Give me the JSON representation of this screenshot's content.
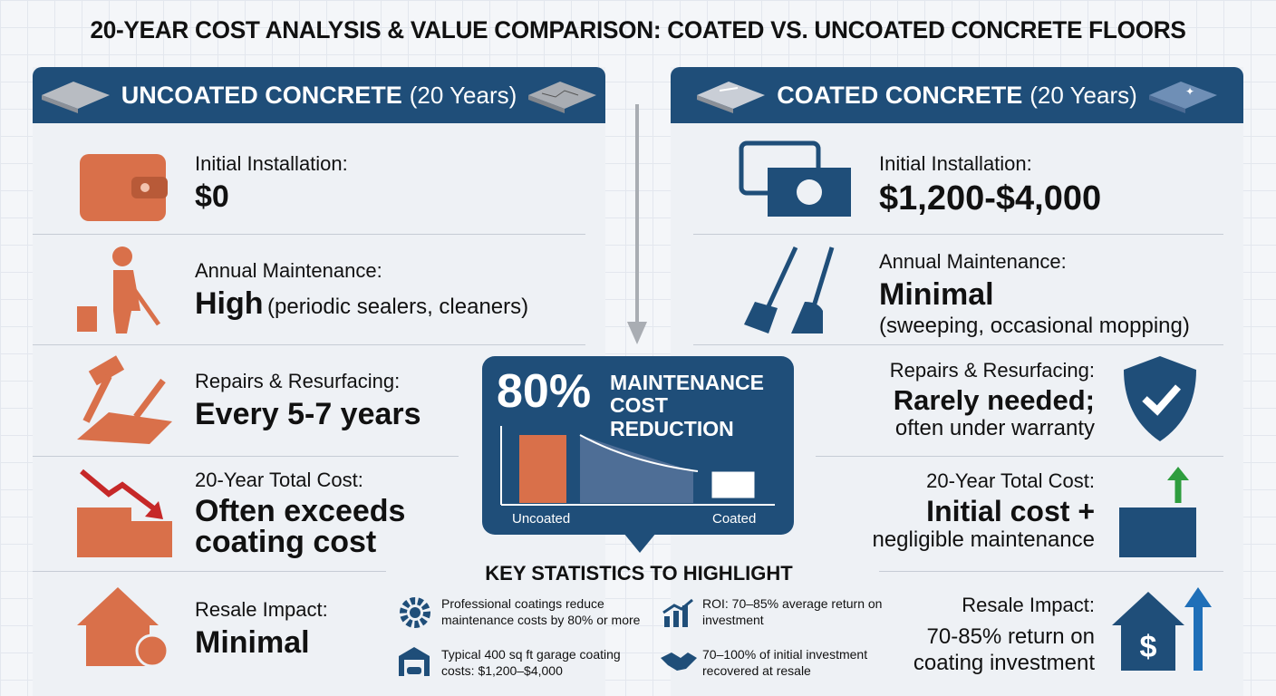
{
  "title": "20-YEAR COST ANALYSIS & VALUE COMPARISON: COATED VS. UNCOATED CONCRETE FLOORS",
  "uncoated": {
    "header": {
      "name": "UNCOATED CONCRETE",
      "period": "(20 Years)"
    },
    "items": [
      {
        "label": "Initial Installation:",
        "value": "$0"
      },
      {
        "label": "Annual Maintenance:",
        "value": "High",
        "detail": "(periodic sealers, cleaners)"
      },
      {
        "label": "Repairs & Resurfacing:",
        "value": "Every 5-7 years"
      },
      {
        "label": "20-Year Total Cost:",
        "value": "Often exceeds coating cost"
      },
      {
        "label": "Resale Impact:",
        "value": "Minimal"
      }
    ]
  },
  "coated": {
    "header": {
      "name": "COATED CONCRETE",
      "period": "(20 Years)"
    },
    "items": [
      {
        "label": "Initial Installation:",
        "value": "$1,200-$4,000"
      },
      {
        "label": "Annual Maintenance:",
        "value": "Minimal",
        "detail": "(sweeping, occasional mopping)"
      },
      {
        "label": "Repairs & Resurfacing:",
        "value": "Rarely needed;",
        "detail": "often under warranty"
      },
      {
        "label": "20-Year Total Cost:",
        "value": "Initial cost +",
        "detail": "negligible maintenance"
      },
      {
        "label": "Resale Impact:",
        "value": "70-85% return on coating investment"
      }
    ]
  },
  "highlight": {
    "stat": "80%",
    "text": "MAINTENANCE COST REDUCTION",
    "chart_labels": [
      "Uncoated",
      "Coated"
    ]
  },
  "key_stats": {
    "title": "KEY STATISTICS TO HIGHLIGHT",
    "items": [
      "Professional coatings reduce maintenance costs by 80% or more",
      "ROI: 70–85% average return on investment",
      "Typical 400 sq ft garage coating costs: $1,200–$4,000",
      "70–100% of initial investment recovered at resale"
    ]
  }
}
